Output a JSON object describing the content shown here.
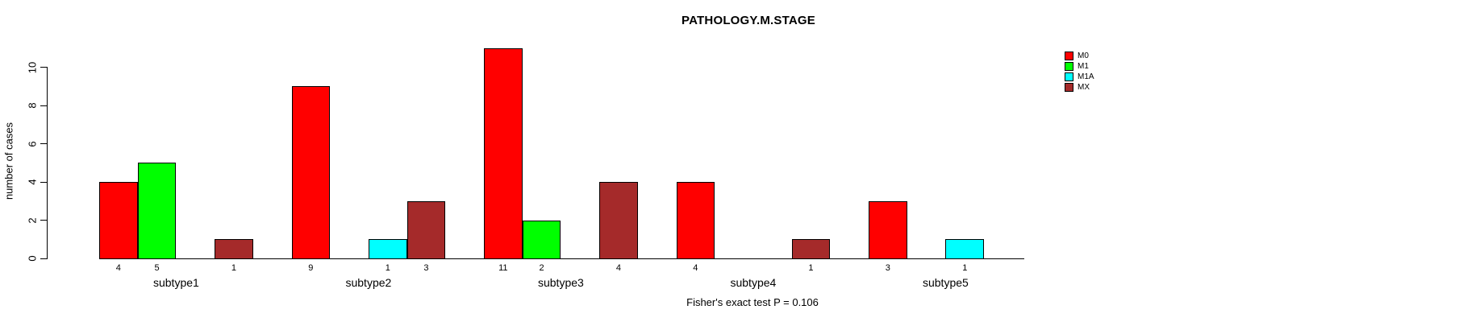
{
  "chart_data": {
    "type": "bar",
    "grouped": true,
    "title": "PATHOLOGY.M.STAGE",
    "xlabel": "",
    "ylabel": "number of cases",
    "categories": [
      "subtype1",
      "subtype2",
      "subtype3",
      "subtype4",
      "subtype5"
    ],
    "series": [
      {
        "name": "M0",
        "color": "#FF0000",
        "values": [
          4,
          9,
          11,
          4,
          3
        ]
      },
      {
        "name": "M1",
        "color": "#00FF00",
        "values": [
          5,
          0,
          2,
          0,
          0
        ]
      },
      {
        "name": "M1A",
        "color": "#00FFFF",
        "values": [
          0,
          1,
          0,
          0,
          1
        ]
      },
      {
        "name": "MX",
        "color": "#A52A2A",
        "values": [
          1,
          3,
          4,
          1,
          0
        ]
      }
    ],
    "ylim": [
      0,
      11
    ],
    "yticks": [
      0,
      2,
      4,
      6,
      8,
      10
    ],
    "grid": false,
    "bar_value_labels_shown": true,
    "zero_bars_hidden": true,
    "legend_position": "right",
    "annotation": "Fisher's exact test P = 0.106"
  },
  "colors": {
    "background": "#FFFFFF",
    "axis": "#000000",
    "text": "#000000",
    "bar_border": "#000000"
  }
}
